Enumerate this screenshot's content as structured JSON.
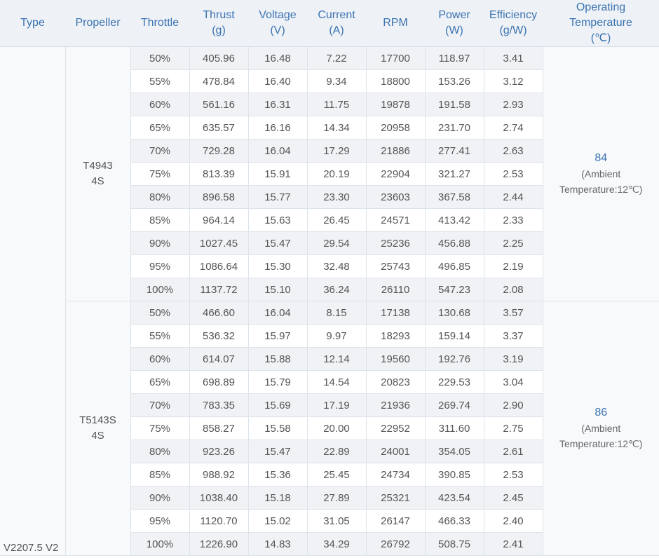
{
  "table": {
    "header": [
      [
        "Type"
      ],
      [
        "Propeller"
      ],
      [
        "Throttle"
      ],
      [
        "Thrust",
        "(g)"
      ],
      [
        "Voltage",
        "(V)"
      ],
      [
        "Current",
        "(A)"
      ],
      [
        "RPM"
      ],
      [
        "Power",
        "(W)"
      ],
      [
        "Efficiency",
        "(g/W)"
      ],
      [
        "Operating",
        "Temperature",
        "(℃)"
      ]
    ],
    "type": "V2207.5 V2",
    "groups": [
      {
        "propeller": [
          "T4943",
          "4S"
        ],
        "temperature": {
          "value": "84",
          "note": [
            "(Ambient",
            "Temperature:12℃)"
          ]
        },
        "rows": [
          [
            "50%",
            "405.96",
            "16.48",
            "7.22",
            "17700",
            "118.97",
            "3.41"
          ],
          [
            "55%",
            "478.84",
            "16.40",
            "9.34",
            "18800",
            "153.26",
            "3.12"
          ],
          [
            "60%",
            "561.16",
            "16.31",
            "11.75",
            "19878",
            "191.58",
            "2.93"
          ],
          [
            "65%",
            "635.57",
            "16.16",
            "14.34",
            "20958",
            "231.70",
            "2.74"
          ],
          [
            "70%",
            "729.28",
            "16.04",
            "17.29",
            "21886",
            "277.41",
            "2.63"
          ],
          [
            "75%",
            "813.39",
            "15.91",
            "20.19",
            "22904",
            "321.27",
            "2.53"
          ],
          [
            "80%",
            "896.58",
            "15.77",
            "23.30",
            "23603",
            "367.58",
            "2.44"
          ],
          [
            "85%",
            "964.14",
            "15.63",
            "26.45",
            "24571",
            "413.42",
            "2.33"
          ],
          [
            "90%",
            "1027.45",
            "15.47",
            "29.54",
            "25236",
            "456.88",
            "2.25"
          ],
          [
            "95%",
            "1086.64",
            "15.30",
            "32.48",
            "25743",
            "496.85",
            "2.19"
          ],
          [
            "100%",
            "1137.72",
            "15.10",
            "36.24",
            "26110",
            "547.23",
            "2.08"
          ]
        ]
      },
      {
        "propeller": [
          "T5143S",
          "4S"
        ],
        "temperature": {
          "value": "86",
          "note": [
            "(Ambient",
            "Temperature:12℃)"
          ]
        },
        "rows": [
          [
            "50%",
            "466.60",
            "16.04",
            "8.15",
            "17138",
            "130.68",
            "3.57"
          ],
          [
            "55%",
            "536.32",
            "15.97",
            "9.97",
            "18293",
            "159.14",
            "3.37"
          ],
          [
            "60%",
            "614.07",
            "15.88",
            "12.14",
            "19560",
            "192.76",
            "3.19"
          ],
          [
            "65%",
            "698.89",
            "15.79",
            "14.54",
            "20823",
            "229.53",
            "3.04"
          ],
          [
            "70%",
            "783.35",
            "15.69",
            "17.19",
            "21936",
            "269.74",
            "2.90"
          ],
          [
            "75%",
            "858.27",
            "15.58",
            "20.00",
            "22952",
            "311.60",
            "2.75"
          ],
          [
            "80%",
            "923.26",
            "15.47",
            "22.89",
            "24001",
            "354.05",
            "2.61"
          ],
          [
            "85%",
            "988.92",
            "15.36",
            "25.45",
            "24734",
            "390.85",
            "2.53"
          ],
          [
            "90%",
            "1038.40",
            "15.18",
            "27.89",
            "25321",
            "423.54",
            "2.45"
          ],
          [
            "95%",
            "1120.70",
            "15.02",
            "31.05",
            "26147",
            "466.33",
            "2.40"
          ],
          [
            "100%",
            "1226.90",
            "14.83",
            "34.29",
            "26792",
            "508.75",
            "2.41"
          ]
        ]
      }
    ]
  }
}
